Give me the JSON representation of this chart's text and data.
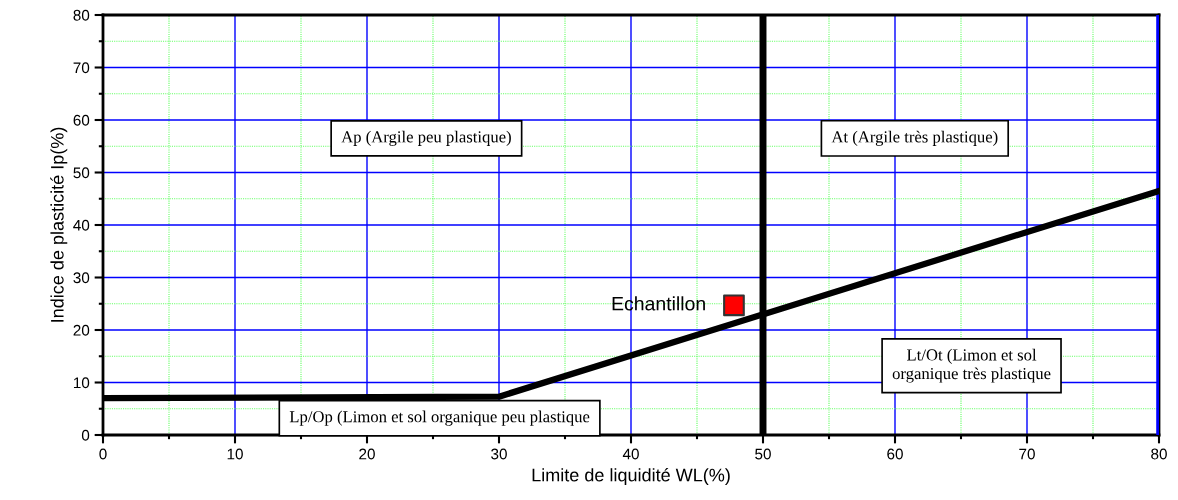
{
  "chart_data": {
    "type": "line",
    "xlabel": "Limite de liquidité WL(%)",
    "ylabel": "Indice de plasticité Ip(%)",
    "xlim": [
      0,
      80
    ],
    "ylim": [
      0,
      80
    ],
    "xticks": [
      0,
      {
        "value": 5,
        "label": null
      },
      10,
      {
        "value": 15,
        "label": null
      },
      20,
      {
        "value": 25,
        "label": null
      },
      30,
      {
        "value": 35,
        "label": null
      },
      40,
      {
        "value": 45,
        "label": null
      },
      50,
      {
        "value": 55,
        "label": null
      },
      60,
      {
        "value": 65,
        "label": null
      },
      70,
      {
        "value": 75,
        "label": null
      },
      80
    ],
    "yticks": [
      0,
      {
        "value": 5,
        "label": null
      },
      10,
      {
        "value": 15,
        "label": null
      },
      20,
      {
        "value": 25,
        "label": null
      },
      30,
      {
        "value": 35,
        "label": null
      },
      40,
      {
        "value": 45,
        "label": null
      },
      50,
      {
        "value": 55,
        "label": null
      },
      60,
      {
        "value": 65,
        "label": null
      },
      70,
      {
        "value": 75,
        "label": null
      },
      80
    ],
    "grid": true,
    "series": [
      {
        "color": "#000000",
        "x": [
          0,
          30,
          80
        ],
        "values": [
          7,
          7.3,
          46.5
        ],
        "marker": "none",
        "line_style": "solid"
      },
      {
        "type": "scatter",
        "color": "#ff0000",
        "x": [
          47.8
        ],
        "values": [
          24.7
        ],
        "marker": "square"
      }
    ],
    "ref_lines": [
      {
        "axis": "x",
        "value": 50,
        "color": "#000000",
        "line_style": "solid"
      },
      {
        "axis": "x",
        "value": 80,
        "color": "#0000ff",
        "line_style": "solid"
      }
    ],
    "annotations": [
      {
        "text": "Echantillon",
        "x": 47.8,
        "y": 24.7
      },
      "Ap (Argile peu plastique)",
      "At (Argile très plastique)",
      "Lt/Ot (Limon et sol\norganique très plastique",
      "Lp/Op (Limon et sol organique peu plastique"
    ]
  }
}
